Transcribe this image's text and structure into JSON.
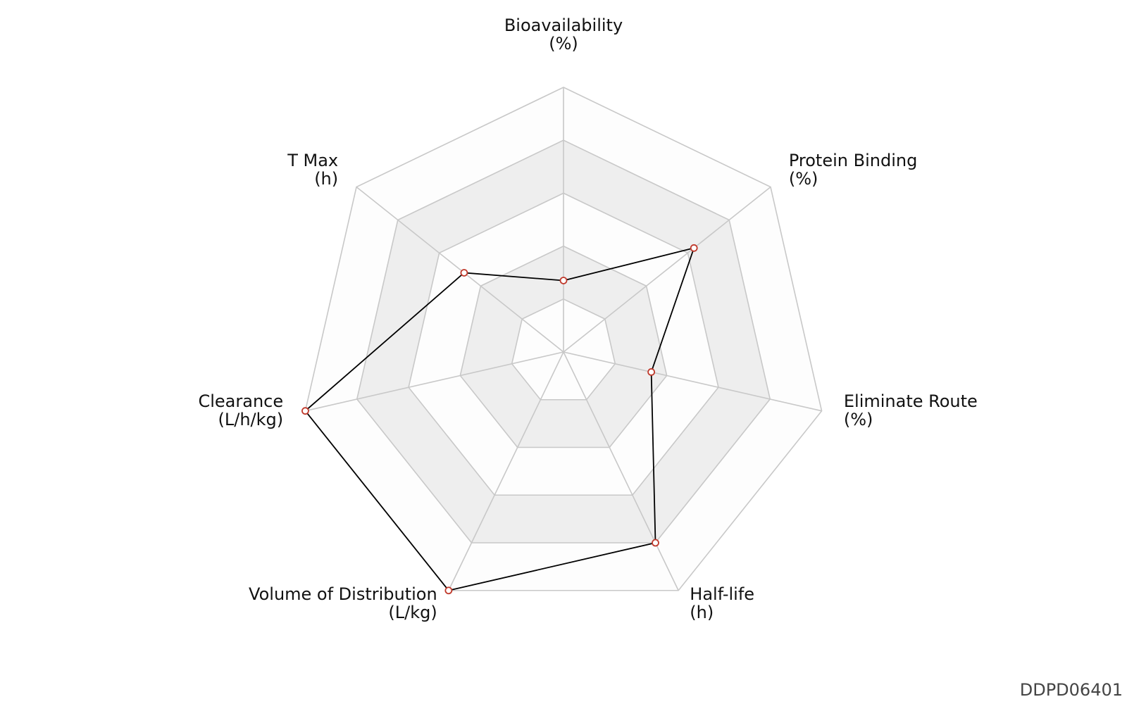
{
  "chart_data": {
    "type": "radar",
    "title": "",
    "axes": [
      {
        "name": "Bioavailability",
        "unit": "(%)"
      },
      {
        "name": "Protein Binding",
        "unit": "(%)"
      },
      {
        "name": "Eliminate Route",
        "unit": "(%)"
      },
      {
        "name": "Half-life",
        "unit": "(h)"
      },
      {
        "name": "Volume of Distribution",
        "unit": "(L/kg)"
      },
      {
        "name": "Clearance",
        "unit": "(L/h/kg)"
      },
      {
        "name": "T Max",
        "unit": "(h)"
      }
    ],
    "rings": 5,
    "range": [
      0,
      1
    ],
    "series": [
      {
        "values": [
          0.27,
          0.63,
          0.34,
          0.8,
          1.0,
          1.0,
          0.48
        ]
      }
    ],
    "colors": {
      "ring_fill_a": "#fdfdfd",
      "ring_fill_b": "#eeeeee",
      "grid": "#c8c8c8",
      "line": "#000000",
      "point_stroke": "#c0392b"
    }
  },
  "watermark": "DDPD06401"
}
